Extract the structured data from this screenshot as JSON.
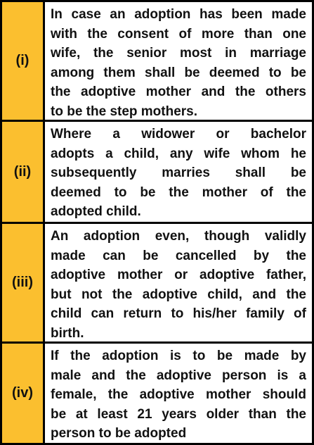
{
  "table": {
    "rows": [
      {
        "label": "(i)",
        "lines": [
          "In case an adoption has been made",
          "with the consent of more than one",
          "wife, the senior most in marriage",
          "among them shall be deemed to be",
          "the adoptive mother and the others",
          "to be the step mothers."
        ]
      },
      {
        "label": "(ii)",
        "lines": [
          "Where a widower or bachelor",
          "adopts a child, any wife whom he",
          "subsequently marries shall be",
          "deemed to be the mother of the",
          "adopted child."
        ]
      },
      {
        "label": "(iii)",
        "lines": [
          "An adoption even, though validly",
          "made can be cancelled by the",
          "adoptive mother or adoptive father,",
          "but not the adoptive child, and the",
          "child can return to his/her family of",
          "birth."
        ]
      },
      {
        "label": "(iv)",
        "lines": [
          "If the adoption is to be made by",
          "male and the adoptive person is a",
          "female, the adoptive mother should",
          "be at least 21 years older than the",
          "person to be adopted"
        ]
      }
    ]
  }
}
